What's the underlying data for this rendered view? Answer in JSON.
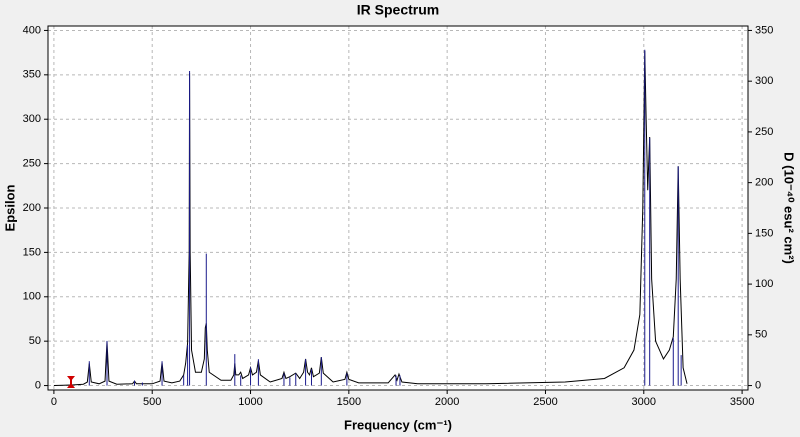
{
  "chart_data": {
    "type": "line",
    "title": "IR Spectrum",
    "x_label": "Frequency (cm⁻¹)",
    "y_label": "Epsilon",
    "y2_label": "D (10⁻⁴⁰ esu² cm²)",
    "xlim": [
      -30,
      3530
    ],
    "xticks": [
      0,
      500,
      1000,
      1500,
      2000,
      2500,
      3000,
      3500
    ],
    "ylim": [
      -5,
      405
    ],
    "yticks": [
      0,
      50,
      100,
      150,
      200,
      250,
      300,
      350,
      400
    ],
    "y2lim": [
      -4.375,
      354.375
    ],
    "y2ticks": [
      0,
      50,
      100,
      150,
      200,
      250,
      300,
      350
    ],
    "grid": true,
    "series": [
      {
        "color": "#000000",
        "x": [
          0,
          50,
          100,
          150,
          170,
          180,
          190,
          230,
          260,
          270,
          280,
          320,
          400,
          410,
          420,
          500,
          540,
          550,
          560,
          600,
          640,
          660,
          670,
          680,
          688,
          690,
          693,
          700,
          720,
          750,
          765,
          770,
          775,
          780,
          790,
          850,
          900,
          915,
          920,
          925,
          940,
          950,
          960,
          990,
          1000,
          1010,
          1030,
          1040,
          1050,
          1100,
          1160,
          1170,
          1180,
          1200,
          1230,
          1250,
          1270,
          1280,
          1290,
          1300,
          1310,
          1320,
          1350,
          1360,
          1370,
          1420,
          1480,
          1490,
          1500,
          1550,
          1700,
          1735,
          1745,
          1755,
          1770,
          1850,
          2200,
          2600,
          2800,
          2900,
          2950,
          2980,
          2995,
          3005,
          3012,
          3020,
          3030,
          3040,
          3060,
          3100,
          3130,
          3150,
          3165,
          3175,
          3185,
          3200,
          3220
        ],
        "values": [
          0,
          0.3,
          0.8,
          1.5,
          4,
          25,
          4,
          2,
          5,
          50,
          5,
          1.5,
          2,
          5,
          2,
          2,
          5,
          26,
          5,
          3,
          5,
          12,
          25,
          48,
          150,
          352,
          150,
          40,
          15,
          15,
          30,
          65,
          70,
          40,
          15,
          6,
          6,
          12,
          25,
          12,
          12,
          15,
          8,
          12,
          20,
          12,
          15,
          28,
          12,
          4,
          8,
          15,
          8,
          10,
          14,
          8,
          15,
          30,
          15,
          12,
          20,
          10,
          14,
          32,
          14,
          4,
          7,
          15,
          7,
          3,
          3,
          12,
          6,
          13,
          4,
          2,
          2,
          4,
          8,
          20,
          40,
          80,
          200,
          377,
          300,
          220,
          280,
          120,
          50,
          30,
          40,
          55,
          120,
          247,
          120,
          20,
          2
        ]
      },
      {
        "color": "#1a1a8c",
        "axis": "y2",
        "style": "stick",
        "x": [
          180,
          270,
          410,
          450,
          550,
          660,
          680,
          690,
          775,
          920,
          950,
          1000,
          1040,
          1170,
          1200,
          1230,
          1280,
          1310,
          1360,
          1490,
          1740,
          1760,
          3005,
          3030,
          3150,
          3175,
          3190
        ],
        "values": [
          24,
          44,
          5,
          3,
          24,
          10,
          40,
          310,
          130,
          31,
          10,
          18,
          26,
          12,
          8,
          12,
          26,
          16,
          28,
          12,
          10,
          10,
          331,
          244,
          47,
          216,
          30
        ]
      }
    ]
  }
}
